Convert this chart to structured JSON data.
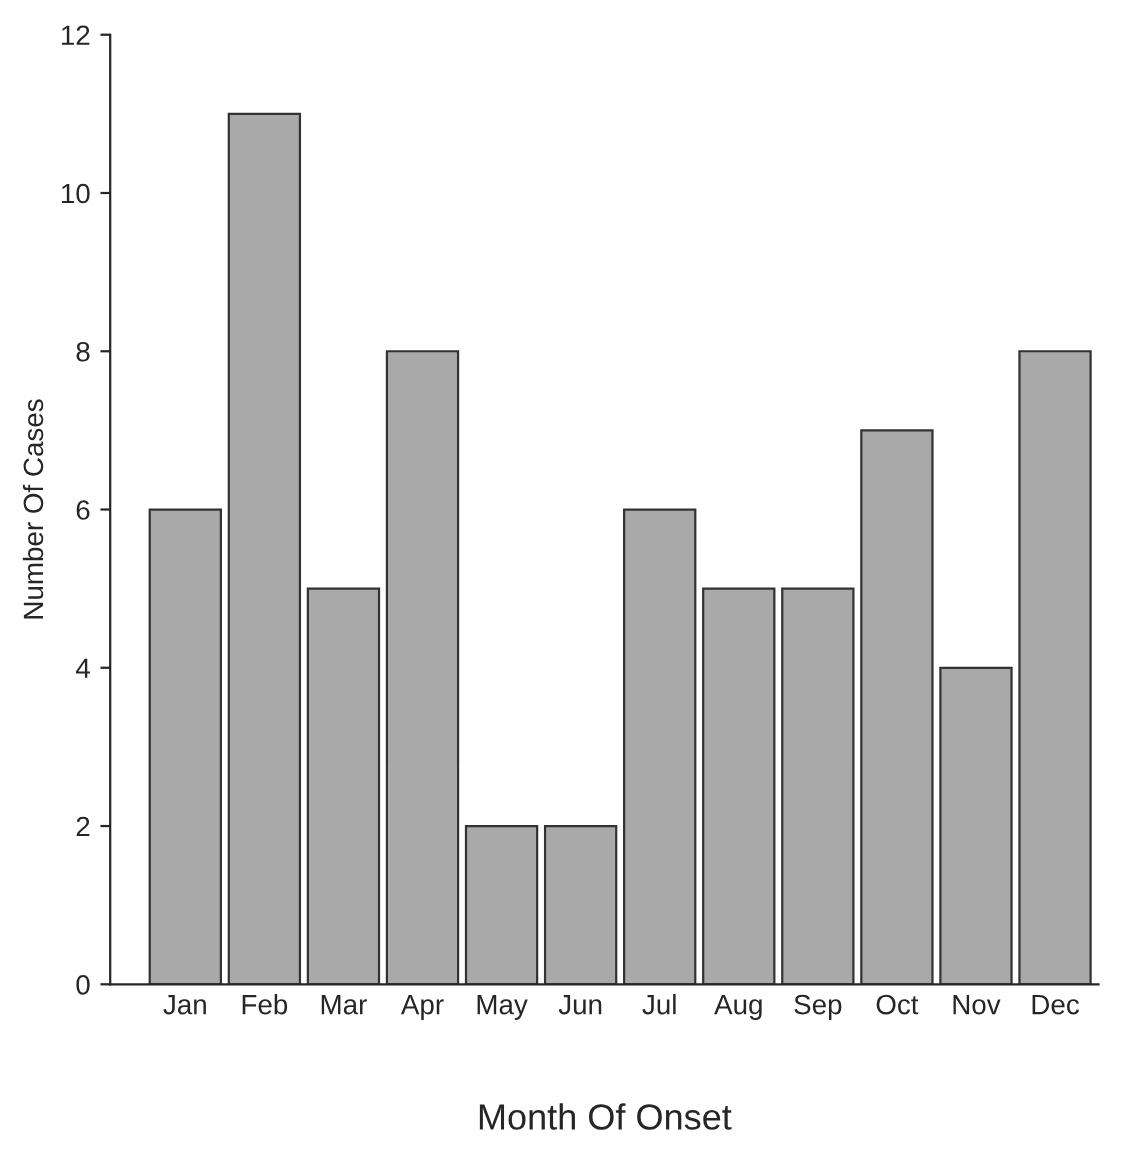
{
  "chart_data": {
    "type": "bar",
    "xlabel": "Month Of Onset",
    "ylabel": "Number Of Cases",
    "categories": [
      "Jan",
      "Feb",
      "Mar",
      "Apr",
      "May",
      "Jun",
      "Jul",
      "Aug",
      "Sep",
      "Oct",
      "Nov",
      "Dec"
    ],
    "values": [
      6,
      11,
      5,
      8,
      2,
      2,
      6,
      5,
      5,
      7,
      4,
      8
    ],
    "color": "#a9a9a9",
    "ylim": [
      0,
      12
    ],
    "yticks": [
      0,
      2,
      4,
      6,
      8,
      10,
      12
    ],
    "grid": false
  }
}
